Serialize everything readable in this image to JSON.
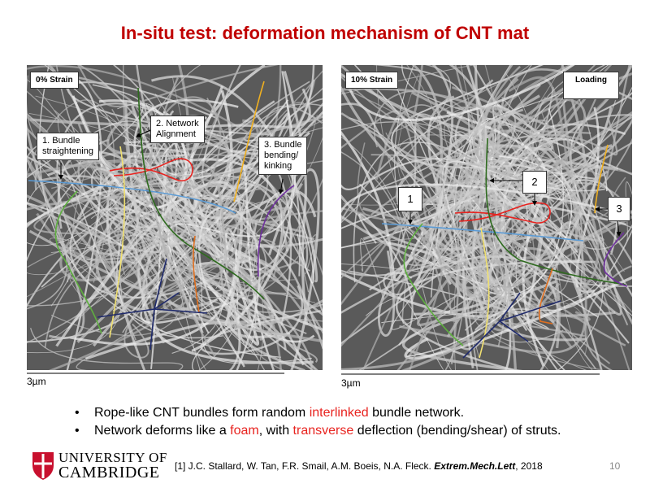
{
  "title": "In-situ test: deformation mechanism of CNT mat",
  "left_panel": {
    "label": "0% Strain",
    "callouts": [
      [
        "1. Bundle",
        "straightening"
      ],
      [
        "2. Network",
        "Alignment"
      ],
      [
        "3. Bundle",
        "bending/",
        "kinking"
      ]
    ],
    "scale": "3µm"
  },
  "right_panel": {
    "label": "10% Strain",
    "loading": "Loading",
    "callouts": [
      "1",
      "2",
      "3"
    ],
    "scale": "3µm"
  },
  "bullets": [
    [
      {
        "text": "Rope-like CNT bundles form random "
      },
      {
        "text": "interlinked",
        "color": "#e8231f"
      },
      {
        "text": " bundle network."
      }
    ],
    [
      {
        "text": "Network deforms like a "
      },
      {
        "text": "foam",
        "color": "#e8231f"
      },
      {
        "text": ", with "
      },
      {
        "text": "transverse",
        "color": "#e8231f"
      },
      {
        "text": " deflection (bending/shear) of struts."
      }
    ]
  ],
  "footer": {
    "university": [
      "UNIVERSITY OF",
      "CAMBRIDGE"
    ],
    "reference": [
      {
        "text": "[1] J.C. Stallard, W. Tan, F.R. Smail, A.M. Boeis,  N.A. Fleck. "
      },
      {
        "text": "Extrem.Mech.Lett",
        "style": "bi"
      },
      {
        "text": ", 2018"
      }
    ],
    "page": "10"
  }
}
